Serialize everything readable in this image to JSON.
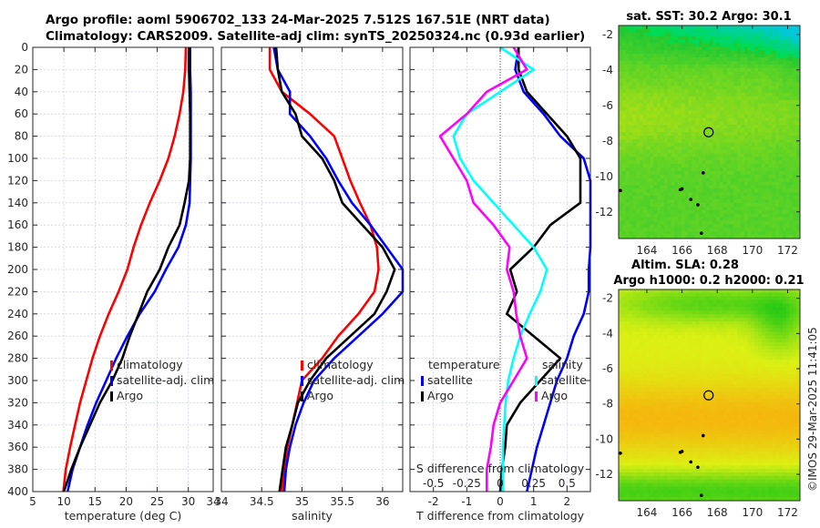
{
  "header": {
    "line1": "Argo profile: aoml 5906702_133 24-Mar-2025 7.512S 167.51E (NRT data)",
    "line2": "Climatology: CARS2009. Satellite-adj clim: synTS_20250324.nc (0.93d earlier)"
  },
  "credit": "©IMOS 29-Mar-2025 11:41:05",
  "colors": {
    "climatology": "#ff0000",
    "satellite": "#0000ff",
    "argo": "#000000",
    "salinity_sat": "#00ffff",
    "salinity_argo": "#ff00ff",
    "grid": "#c8c8e6"
  },
  "chart_data": [
    {
      "type": "line",
      "id": "temperature",
      "xlabel": "temperature (deg C)",
      "ylabel": "",
      "xlim": [
        5,
        34
      ],
      "ylim": [
        0,
        400
      ],
      "y_reversed": true,
      "grid": true,
      "xticks": [
        5,
        10,
        15,
        20,
        25,
        30,
        34
      ],
      "yticks": [
        0,
        20,
        40,
        60,
        80,
        100,
        120,
        140,
        160,
        180,
        200,
        220,
        240,
        260,
        280,
        300,
        320,
        340,
        360,
        380,
        400
      ],
      "legend": {
        "placement": "center-right",
        "entries": [
          "climatology",
          "satellite-adj. clim",
          "Argo"
        ]
      },
      "series": [
        {
          "name": "climatology",
          "color": "#ff0000",
          "x": [
            29.6,
            29.5,
            29.2,
            28.6,
            27.8,
            26.8,
            25.4,
            23.8,
            22.4,
            21.2,
            20.2,
            18.8,
            17.2,
            15.8,
            14.6,
            13.6,
            12.6,
            11.8,
            11.0,
            10.3,
            9.9
          ],
          "y": [
            0,
            20,
            40,
            60,
            80,
            100,
            120,
            140,
            160,
            180,
            200,
            220,
            240,
            260,
            280,
            300,
            320,
            340,
            360,
            380,
            400
          ]
        },
        {
          "name": "satellite-adj. clim",
          "color": "#0000ff",
          "x": [
            30.3,
            30.3,
            30.4,
            30.4,
            30.4,
            30.4,
            30.3,
            30.2,
            29.6,
            28.4,
            26.4,
            24.6,
            22.2,
            20.2,
            18.4,
            16.8,
            15.2,
            13.8,
            12.6,
            11.4,
            10.6
          ],
          "y": [
            0,
            20,
            40,
            60,
            80,
            100,
            120,
            140,
            160,
            180,
            200,
            220,
            240,
            260,
            280,
            300,
            320,
            340,
            360,
            380,
            400
          ]
        },
        {
          "name": "Argo",
          "color": "#000000",
          "x": [
            30.1,
            30.1,
            30.2,
            30.3,
            30.3,
            30.3,
            30.1,
            29.4,
            28.6,
            26.8,
            25.4,
            23.4,
            22.0,
            20.6,
            19.4,
            17.8,
            15.8,
            14.2,
            12.6,
            11.2,
            10.0
          ],
          "y": [
            0,
            20,
            40,
            60,
            80,
            100,
            120,
            140,
            160,
            180,
            200,
            220,
            240,
            260,
            280,
            300,
            320,
            340,
            360,
            380,
            400
          ]
        }
      ]
    },
    {
      "type": "line",
      "id": "salinity",
      "xlabel": "salinity",
      "xlim": [
        34,
        36.25
      ],
      "ylim": [
        0,
        400
      ],
      "y_reversed": true,
      "grid": true,
      "xticks": [
        34,
        34.5,
        35,
        35.5,
        36
      ],
      "xticklabels": [
        "34",
        "34.5",
        "35",
        "35.5",
        "36"
      ],
      "legend": {
        "placement": "center",
        "entries": [
          "climatology",
          "satellite-adj. clim",
          "Argo"
        ]
      },
      "series": [
        {
          "name": "climatology",
          "color": "#ff0000",
          "x": [
            34.6,
            34.6,
            34.75,
            35.1,
            35.4,
            35.5,
            35.6,
            35.72,
            35.85,
            35.93,
            35.95,
            35.9,
            35.7,
            35.45,
            35.25,
            35.0,
            34.94,
            34.88,
            34.82,
            34.78,
            34.75
          ],
          "y": [
            0,
            20,
            40,
            60,
            80,
            100,
            120,
            140,
            160,
            180,
            200,
            220,
            240,
            260,
            280,
            300,
            320,
            340,
            360,
            380,
            400
          ]
        },
        {
          "name": "satellite-adj. clim",
          "color": "#0000ff",
          "x": [
            34.65,
            34.7,
            34.85,
            34.85,
            35.1,
            35.3,
            35.45,
            35.62,
            35.85,
            36.05,
            36.25,
            36.25,
            36.0,
            35.7,
            35.4,
            35.15,
            35.02,
            34.92,
            34.85,
            34.8,
            34.78
          ],
          "y": [
            0,
            20,
            40,
            60,
            80,
            100,
            120,
            140,
            160,
            180,
            200,
            220,
            240,
            260,
            280,
            300,
            320,
            340,
            360,
            380,
            400
          ]
        },
        {
          "name": "Argo",
          "color": "#000000",
          "x": [
            34.68,
            34.7,
            34.75,
            34.92,
            35.0,
            35.25,
            35.4,
            35.5,
            35.75,
            36.0,
            36.15,
            36.05,
            35.9,
            35.6,
            35.3,
            35.1,
            34.95,
            34.88,
            34.8,
            34.76,
            34.72
          ],
          "y": [
            0,
            20,
            40,
            60,
            80,
            100,
            120,
            140,
            160,
            180,
            200,
            220,
            240,
            260,
            280,
            300,
            320,
            340,
            360,
            380,
            400
          ]
        }
      ]
    },
    {
      "type": "line",
      "id": "difference",
      "xlabel": "T difference from climatology",
      "xlim": [
        -2.7,
        2.7
      ],
      "ylim": [
        0,
        400
      ],
      "y_reversed": true,
      "grid": true,
      "xticks": [
        -2,
        -1,
        0,
        1,
        2
      ],
      "secondary_xlabel": "S difference from climatology",
      "secondary_xticks": [
        -0.5,
        -0.25,
        0,
        0.25,
        0.5
      ],
      "secondary_xticklabels": [
        "-0.5",
        "-0.25",
        "0",
        "0.25",
        "0.5"
      ],
      "legend": {
        "placement": "center",
        "groups": [
          {
            "title": "temperature",
            "entries": [
              "satellite",
              "Argo"
            ]
          },
          {
            "title": "salinity",
            "entries": [
              "satellite",
              "Argo"
            ]
          }
        ]
      },
      "series": [
        {
          "name": "temperature satellite",
          "color": "#0000ff",
          "x": [
            0.55,
            0.45,
            0.7,
            1.3,
            1.8,
            2.5,
            2.9,
            2.9,
            2.9,
            2.75,
            2.65,
            2.65,
            2.5,
            2.2,
            2.0,
            1.7,
            1.5,
            1.3,
            1.1,
            0.95,
            0.8
          ],
          "y": [
            0,
            20,
            40,
            60,
            80,
            100,
            120,
            140,
            160,
            180,
            200,
            220,
            240,
            260,
            280,
            300,
            320,
            340,
            360,
            380,
            400
          ]
        },
        {
          "name": "temperature Argo",
          "color": "#000000",
          "x": [
            0.55,
            0.55,
            0.8,
            1.4,
            2.0,
            2.4,
            2.4,
            2.4,
            1.5,
            1.0,
            0.3,
            0.5,
            0.2,
            1.0,
            1.8,
            1.2,
            0.6,
            0.2,
            0.15,
            0.05,
            0.0
          ],
          "y": [
            0,
            20,
            40,
            60,
            80,
            100,
            120,
            140,
            160,
            180,
            200,
            220,
            240,
            260,
            280,
            300,
            320,
            340,
            360,
            380,
            400
          ]
        },
        {
          "name": "salinity satellite",
          "color": "#00ffff",
          "x": [
            0.0,
            0.25,
            0.0,
            -0.25,
            -0.35,
            -0.3,
            -0.2,
            -0.05,
            0.1,
            0.25,
            0.35,
            0.3,
            0.22,
            0.15,
            0.1,
            0.06,
            0.04,
            0.03,
            0.02,
            0.02,
            0.02
          ],
          "y": [
            0,
            20,
            40,
            60,
            80,
            100,
            120,
            140,
            160,
            180,
            200,
            220,
            240,
            260,
            280,
            300,
            320,
            340,
            360,
            380,
            400
          ]
        },
        {
          "name": "salinity Argo",
          "color": "#ff00ff",
          "x": [
            0.1,
            0.2,
            -0.1,
            -0.25,
            -0.45,
            -0.35,
            -0.25,
            -0.2,
            -0.05,
            0.07,
            0.05,
            0.1,
            0.12,
            0.15,
            0.2,
            0.1,
            0.0,
            -0.05,
            -0.07,
            -0.1,
            -0.1
          ],
          "y": [
            0,
            20,
            40,
            60,
            80,
            100,
            120,
            140,
            160,
            180,
            200,
            220,
            240,
            260,
            280,
            300,
            320,
            340,
            360,
            380,
            400
          ]
        }
      ]
    },
    {
      "type": "heatmap",
      "id": "sst-map",
      "title": "sat. SST: 30.2 Argo: 30.1",
      "xlim": [
        162.4,
        172.7
      ],
      "ylim": [
        -13.5,
        -1.5
      ],
      "xticks": [
        164,
        166,
        168,
        170,
        172
      ],
      "yticks": [
        -2,
        -4,
        -6,
        -8,
        -10,
        -12
      ],
      "marker": {
        "lon": 167.51,
        "lat": -7.512
      },
      "values": {
        "sat_sst": 30.2,
        "argo": 30.1
      }
    },
    {
      "type": "heatmap",
      "id": "sla-map",
      "title": "Altim. SLA: 0.28",
      "subtitle": "Argo h1000: 0.2 h2000: 0.21",
      "xlim": [
        162.4,
        172.7
      ],
      "ylim": [
        -13.5,
        -1.5
      ],
      "xticks": [
        164,
        166,
        168,
        170,
        172
      ],
      "yticks": [
        -2,
        -4,
        -6,
        -8,
        -10,
        -12
      ],
      "marker": {
        "lon": 167.51,
        "lat": -7.512
      },
      "values": {
        "altim_sla": 0.28,
        "argo_h1000": 0.2,
        "argo_h2000": 0.21
      }
    }
  ]
}
